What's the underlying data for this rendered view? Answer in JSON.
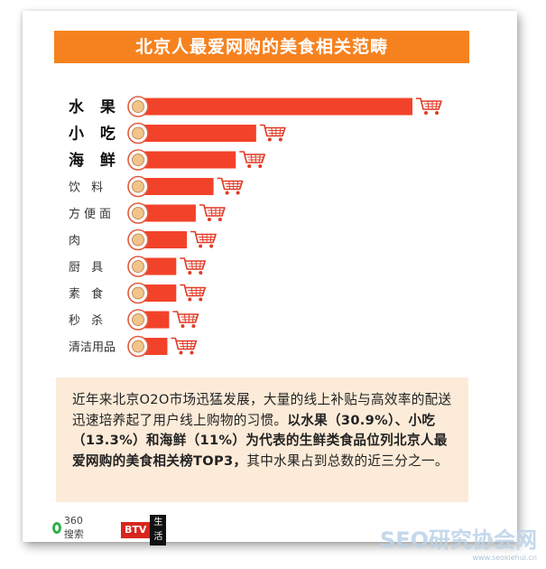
{
  "title": "北京人最爱网购的美食相关范畴",
  "chart_data": {
    "type": "bar",
    "orientation": "horizontal",
    "categories": [
      "水 果",
      "小 吃",
      "海 鲜",
      "饮 料",
      "方便面",
      "肉",
      "厨 具",
      "素 食",
      "秒 杀",
      "清洁用品"
    ],
    "emphasized": [
      true,
      true,
      true,
      false,
      false,
      false,
      false,
      false,
      false,
      false
    ],
    "values": [
      30.9,
      13.3,
      11,
      8.5,
      6.5,
      5.5,
      4.3,
      4.3,
      3.5,
      3.3
    ],
    "unit": "%",
    "icons": [
      "apple-icon",
      "snack-icon",
      "crab-icon",
      "bottle-icon",
      "noodle-icon",
      "meat-icon",
      "cookware-icon",
      "veggie-dish-icon",
      "flash-sale-icon",
      "cleaning-icon"
    ],
    "trailing_icon": "shopping-cart-icon",
    "bar_color": "#f2432a",
    "grid": false
  },
  "description": {
    "part1": "近年来北京O2O市场迅猛发展，大量的线上补贴与高效率的配送迅速培养起了用户线上购物的习惯。",
    "part2": "以水果（30.9%）、小吃（13.3%）和海鲜（11%）为代表的生鲜类食品位列北京人最爱网购的美食相关榜TOP3，",
    "part3": "其中水果占到总数的近三分之一。"
  },
  "footer": {
    "source_logo": "360搜索",
    "channel": "BTV",
    "channel_sub": "生活"
  },
  "watermark": {
    "main": "SEO研究协会网",
    "sub": "www.seoxiehui.cn"
  },
  "colors": {
    "title_bg": "#f6821f",
    "bar": "#f2432a",
    "info_bg": "#fcebd8",
    "cart": "#e23a26"
  }
}
